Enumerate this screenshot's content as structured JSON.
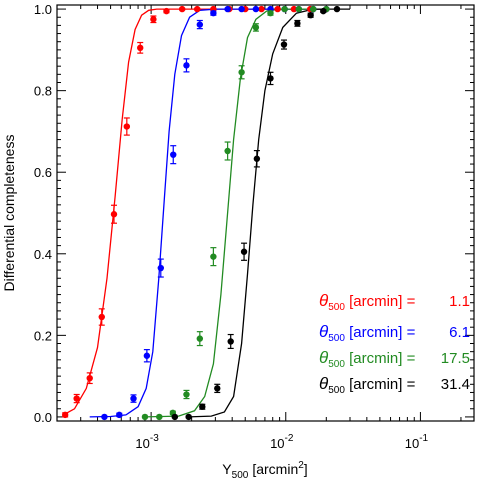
{
  "chart_data": {
    "type": "scatter",
    "xlabel": "Y",
    "xlabel_sub": "500",
    "xlabel_unit": "[arcmin",
    "xlabel_unit_sup": "2",
    "xlabel_unit_close": "]",
    "ylabel": "Differential completeness",
    "xscale": "log",
    "xlim": [
      0.0002,
      0.25
    ],
    "ylim": [
      -0.01,
      1.01
    ],
    "grid": false,
    "legend_position": "bottom-right",
    "x_ticks": [
      {
        "value": 0.001,
        "base": "10",
        "exp": "-3"
      },
      {
        "value": 0.01,
        "base": "10",
        "exp": "-2"
      },
      {
        "value": 0.1,
        "base": "10",
        "exp": "-1"
      }
    ],
    "y_ticks": [
      {
        "value": 0.0,
        "label": "0.0"
      },
      {
        "value": 0.2,
        "label": "0.2"
      },
      {
        "value": 0.4,
        "label": "0.4"
      },
      {
        "value": 0.6,
        "label": "0.6"
      },
      {
        "value": 0.8,
        "label": "0.8"
      },
      {
        "value": 1.0,
        "label": "1.0"
      }
    ],
    "series": [
      {
        "color": "#ff0000",
        "legend": {
          "symbol": "θ",
          "sub": "500",
          "text": " [arcmin] =",
          "value": "1.1"
        },
        "points": [
          {
            "x": 0.00023,
            "y": 0.005,
            "err": 0.005
          },
          {
            "x": 0.00028,
            "y": 0.045,
            "err": 0.01
          },
          {
            "x": 0.00035,
            "y": 0.095,
            "err": 0.013
          },
          {
            "x": 0.00043,
            "y": 0.245,
            "err": 0.02
          },
          {
            "x": 0.00053,
            "y": 0.497,
            "err": 0.022
          },
          {
            "x": 0.00066,
            "y": 0.712,
            "err": 0.021
          },
          {
            "x": 0.00083,
            "y": 0.905,
            "err": 0.013
          },
          {
            "x": 0.00104,
            "y": 0.975,
            "err": 0.008
          },
          {
            "x": 0.0013,
            "y": 0.995,
            "err": 0.004
          },
          {
            "x": 0.0017,
            "y": 1.0,
            "err": 0.002
          },
          {
            "x": 0.0022,
            "y": 1.0,
            "err": 0.002
          },
          {
            "x": 0.0029,
            "y": 1.0,
            "err": 0.002
          },
          {
            "x": 0.0038,
            "y": 1.0,
            "err": 0.002
          },
          {
            "x": 0.005,
            "y": 1.0,
            "err": 0.002
          },
          {
            "x": 0.0066,
            "y": 1.0,
            "err": 0.002
          },
          {
            "x": 0.0087,
            "y": 1.0,
            "err": 0.002
          },
          {
            "x": 0.0115,
            "y": 1.0,
            "err": 0.002
          },
          {
            "x": 0.0152,
            "y": 1.0,
            "err": 0.002
          },
          {
            "x": 0.02,
            "y": 1.0,
            "err": 0.002
          }
        ],
        "curve": [
          [
            0.00022,
            0.004
          ],
          [
            0.00027,
            0.02
          ],
          [
            0.00033,
            0.07
          ],
          [
            0.0004,
            0.17
          ],
          [
            0.00047,
            0.34
          ],
          [
            0.00054,
            0.54
          ],
          [
            0.00061,
            0.73
          ],
          [
            0.00068,
            0.87
          ],
          [
            0.00076,
            0.95
          ],
          [
            0.00085,
            0.985
          ],
          [
            0.00096,
            0.997
          ],
          [
            0.0011,
            1.0
          ],
          [
            0.02,
            1.0
          ]
        ]
      },
      {
        "color": "#0000ff",
        "legend": {
          "symbol": "θ",
          "sub": "500",
          "text": " [arcmin] =",
          "value": "6.1"
        },
        "points": [
          {
            "x": 0.00045,
            "y": 0.0,
            "err": 0.002
          },
          {
            "x": 0.00058,
            "y": 0.005,
            "err": 0.004
          },
          {
            "x": 0.00074,
            "y": 0.045,
            "err": 0.009
          },
          {
            "x": 0.00093,
            "y": 0.15,
            "err": 0.015
          },
          {
            "x": 0.00118,
            "y": 0.365,
            "err": 0.022
          },
          {
            "x": 0.00146,
            "y": 0.643,
            "err": 0.022
          },
          {
            "x": 0.00183,
            "y": 0.862,
            "err": 0.016
          },
          {
            "x": 0.0023,
            "y": 0.962,
            "err": 0.01
          },
          {
            "x": 0.0029,
            "y": 0.99,
            "err": 0.005
          },
          {
            "x": 0.0037,
            "y": 1.0,
            "err": 0.002
          },
          {
            "x": 0.0047,
            "y": 1.0,
            "err": 0.002
          },
          {
            "x": 0.006,
            "y": 1.0,
            "err": 0.002
          },
          {
            "x": 0.0077,
            "y": 1.0,
            "err": 0.002
          },
          {
            "x": 0.0098,
            "y": 1.0,
            "err": 0.002
          },
          {
            "x": 0.0125,
            "y": 1.0,
            "err": 0.002
          },
          {
            "x": 0.016,
            "y": 1.0,
            "err": 0.002
          },
          {
            "x": 0.02,
            "y": 1.0,
            "err": 0.002
          }
        ],
        "curve": [
          [
            0.00035,
            0.0
          ],
          [
            0.0005,
            0.001
          ],
          [
            0.00065,
            0.005
          ],
          [
            0.0008,
            0.025
          ],
          [
            0.00092,
            0.07
          ],
          [
            0.00103,
            0.16
          ],
          [
            0.00114,
            0.34
          ],
          [
            0.00125,
            0.53
          ],
          [
            0.00136,
            0.7
          ],
          [
            0.0015,
            0.84
          ],
          [
            0.00168,
            0.935
          ],
          [
            0.00193,
            0.98
          ],
          [
            0.0023,
            0.997
          ],
          [
            0.003,
            1.0
          ],
          [
            0.02,
            1.0
          ]
        ]
      },
      {
        "color": "#228b22",
        "legend": {
          "symbol": "θ",
          "sub": "500",
          "text": " [arcmin] =",
          "value": "17.5"
        },
        "points": [
          {
            "x": 0.0009,
            "y": 0.0,
            "err": 0.002
          },
          {
            "x": 0.00115,
            "y": 0.0,
            "err": 0.002
          },
          {
            "x": 0.00145,
            "y": 0.01,
            "err": 0.004
          },
          {
            "x": 0.00183,
            "y": 0.055,
            "err": 0.01
          },
          {
            "x": 0.0023,
            "y": 0.192,
            "err": 0.017
          },
          {
            "x": 0.0029,
            "y": 0.393,
            "err": 0.022
          },
          {
            "x": 0.0037,
            "y": 0.652,
            "err": 0.022
          },
          {
            "x": 0.0047,
            "y": 0.845,
            "err": 0.016
          },
          {
            "x": 0.006,
            "y": 0.955,
            "err": 0.009
          },
          {
            "x": 0.0077,
            "y": 0.99,
            "err": 0.005
          },
          {
            "x": 0.0098,
            "y": 1.0,
            "err": 0.002
          },
          {
            "x": 0.0125,
            "y": 1.0,
            "err": 0.002
          },
          {
            "x": 0.016,
            "y": 1.0,
            "err": 0.002
          },
          {
            "x": 0.02,
            "y": 1.0,
            "err": 0.002
          }
        ],
        "curve": [
          [
            0.0009,
            0.0
          ],
          [
            0.0016,
            0.002
          ],
          [
            0.0021,
            0.015
          ],
          [
            0.0025,
            0.05
          ],
          [
            0.0029,
            0.13
          ],
          [
            0.0033,
            0.3
          ],
          [
            0.0037,
            0.5
          ],
          [
            0.0041,
            0.68
          ],
          [
            0.0046,
            0.83
          ],
          [
            0.0052,
            0.93
          ],
          [
            0.006,
            0.975
          ],
          [
            0.0072,
            0.995
          ],
          [
            0.009,
            1.0
          ],
          [
            0.02,
            1.0
          ]
        ]
      },
      {
        "color": "#000000",
        "legend": {
          "symbol": "θ",
          "sub": "500",
          "text": " [arcmin] =",
          "value": "31.4"
        },
        "points": [
          {
            "x": 0.0015,
            "y": 0.0,
            "err": 0.002
          },
          {
            "x": 0.0019,
            "y": 0.0,
            "err": 0.002
          },
          {
            "x": 0.0024,
            "y": 0.025,
            "err": 0.006
          },
          {
            "x": 0.0031,
            "y": 0.07,
            "err": 0.01
          },
          {
            "x": 0.0039,
            "y": 0.185,
            "err": 0.017
          },
          {
            "x": 0.0049,
            "y": 0.405,
            "err": 0.021
          },
          {
            "x": 0.0061,
            "y": 0.633,
            "err": 0.02
          },
          {
            "x": 0.0077,
            "y": 0.83,
            "err": 0.015
          },
          {
            "x": 0.0097,
            "y": 0.913,
            "err": 0.011
          },
          {
            "x": 0.0122,
            "y": 0.965,
            "err": 0.007
          },
          {
            "x": 0.0153,
            "y": 0.985,
            "err": 0.005
          },
          {
            "x": 0.019,
            "y": 0.995,
            "err": 0.003
          },
          {
            "x": 0.024,
            "y": 1.0,
            "err": 0.002
          }
        ],
        "curve": [
          [
            0.0019,
            0.0
          ],
          [
            0.0028,
            0.002
          ],
          [
            0.0035,
            0.012
          ],
          [
            0.0041,
            0.05
          ],
          [
            0.0047,
            0.18
          ],
          [
            0.0052,
            0.35
          ],
          [
            0.0057,
            0.52
          ],
          [
            0.0063,
            0.68
          ],
          [
            0.007,
            0.8
          ],
          [
            0.008,
            0.89
          ],
          [
            0.0095,
            0.955
          ],
          [
            0.012,
            0.99
          ],
          [
            0.016,
            1.0
          ],
          [
            0.03,
            1.0
          ]
        ]
      }
    ]
  }
}
